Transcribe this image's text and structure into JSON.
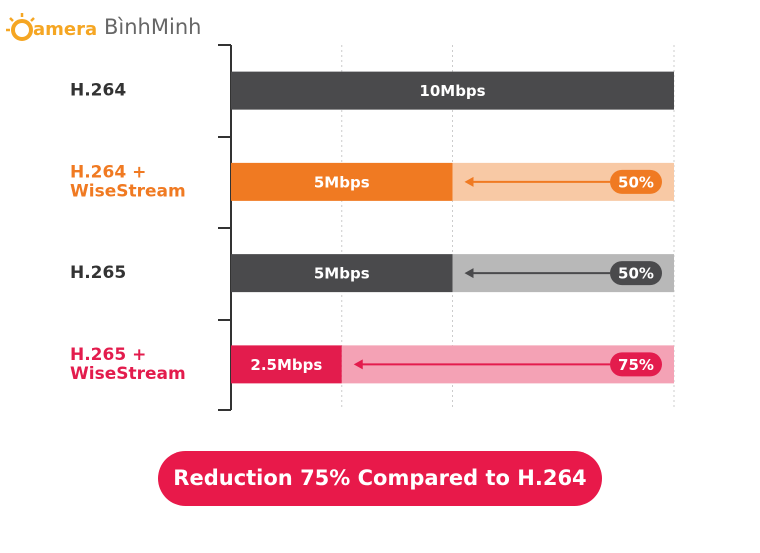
{
  "logo": {
    "letters": "amera",
    "brand": "BìnhMinh"
  },
  "chart_data": {
    "type": "bar",
    "orientation": "horizontal",
    "categories": [
      [
        "H.264"
      ],
      [
        "H.264 +",
        "WiseStream"
      ],
      [
        "H.265"
      ],
      [
        "H.265 +",
        "WiseStream"
      ]
    ],
    "category_colors": [
      "#333333",
      "#f07a22",
      "#333333",
      "#e31c4d"
    ],
    "values": [
      10,
      5,
      5,
      2.5
    ],
    "value_labels": [
      "10Mbps",
      "5Mbps",
      "5Mbps",
      "2.5Mbps"
    ],
    "colors": [
      "#4a4a4c",
      "#f07a22",
      "#4a4a4c",
      "#e31c4d"
    ],
    "remainder_colors": [
      null,
      "#f8c9a5",
      "#b8b8b8",
      "#f4a2b5"
    ],
    "reductions": [
      null,
      50,
      50,
      75
    ],
    "reduction_labels": [
      null,
      "50%",
      "50%",
      "75%"
    ],
    "xlim": [
      0,
      10
    ],
    "xgrid": [
      2.5,
      5,
      10
    ],
    "footer": "Reduction 75% Compared to H.264"
  }
}
